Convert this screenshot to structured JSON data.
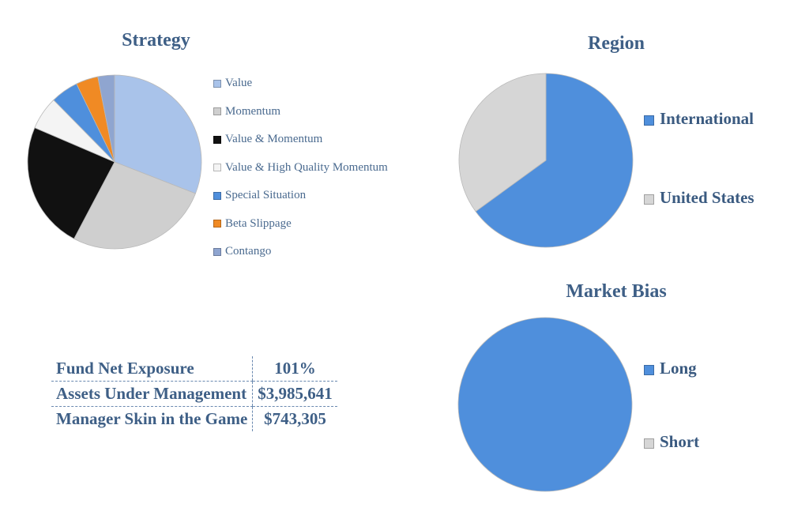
{
  "colors": {
    "value": "#a9c3ea",
    "momentum": "#cfcfcf",
    "value_momentum": "#111111",
    "value_hq_momentum": "#f4f4f4",
    "special_situation": "#4f8fdc",
    "beta_slippage": "#f08a24",
    "contango": "#8fa5d0",
    "international": "#4f8fdc",
    "united_states": "#d6d6d6",
    "long": "#4f8fdc",
    "short": "#d6d6d6",
    "text": "#3e5f86"
  },
  "chart_data": [
    {
      "type": "pie",
      "title": "Strategy",
      "legend_position": "right",
      "categories": [
        "Value",
        "Momentum",
        "Value & Momentum",
        "Value & High Quality Momentum",
        "Special Situation",
        "Beta Slippage",
        "Contango"
      ],
      "values": [
        30,
        26,
        23,
        6,
        5,
        4,
        3
      ],
      "colors": [
        "#a9c3ea",
        "#cfcfcf",
        "#111111",
        "#f4f4f4",
        "#4f8fdc",
        "#f08a24",
        "#8fa5d0"
      ]
    },
    {
      "type": "pie",
      "title": "Region",
      "legend_position": "right",
      "categories": [
        "International",
        "United States"
      ],
      "values": [
        65,
        35
      ],
      "colors": [
        "#4f8fdc",
        "#d6d6d6"
      ]
    },
    {
      "type": "pie",
      "title": "Market Bias",
      "legend_position": "right",
      "categories": [
        "Long",
        "Short"
      ],
      "values": [
        100,
        0
      ],
      "colors": [
        "#4f8fdc",
        "#d6d6d6"
      ]
    }
  ],
  "stats_table": {
    "rows": [
      {
        "label": "Fund Net Exposure",
        "value": "101%"
      },
      {
        "label": "Assets Under Management",
        "value": "$3,985,641"
      },
      {
        "label": "Manager Skin in the Game",
        "value": "$743,305"
      }
    ]
  }
}
